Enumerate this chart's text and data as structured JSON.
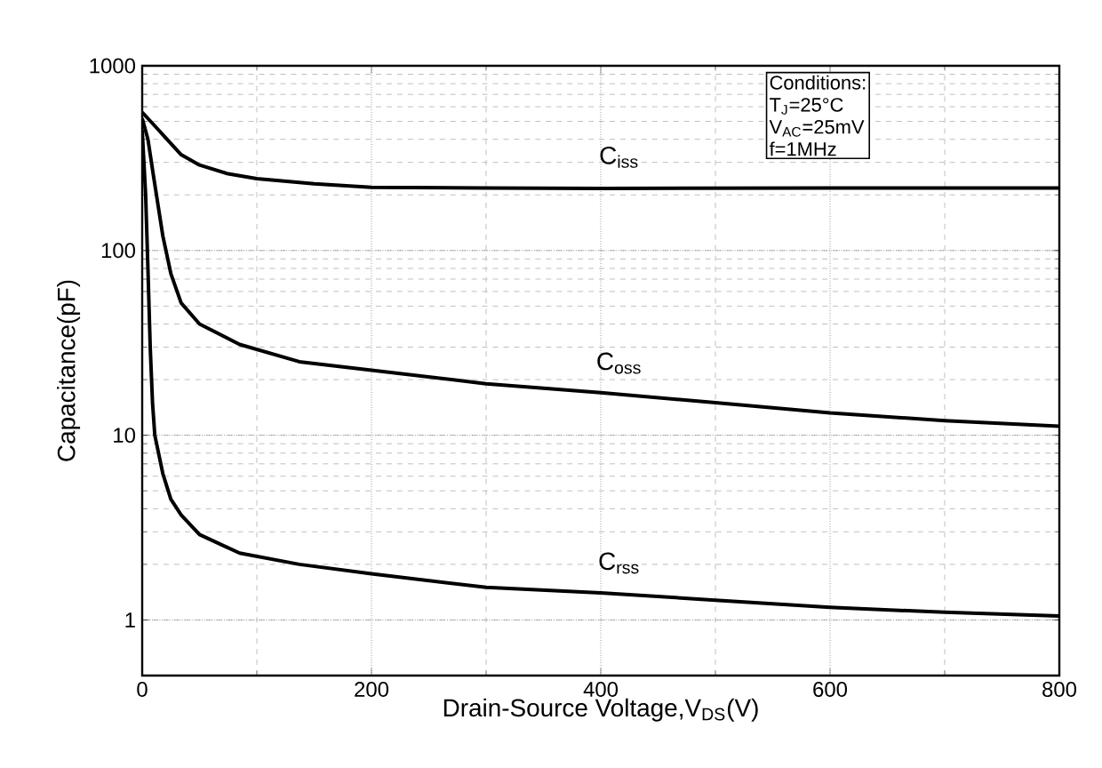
{
  "chart_data": {
    "type": "line",
    "xlabel": "Drain-Source Voltage,V$_{DS}$(V)",
    "ylabel": "Capacitance(pF)",
    "log": "y",
    "grid": true,
    "marker": "none",
    "line_style": "solid",
    "xlim": [
      0,
      800
    ],
    "xticks": [
      0,
      200,
      400,
      600,
      800
    ],
    "ylim": [
      0.5,
      1000
    ],
    "yticks": [
      1,
      10,
      100,
      1000
    ],
    "annotations": [
      "Conditions:",
      "T$_{J}$=25°C",
      "V$_{AC}$=25mV",
      "f=1MHz"
    ],
    "series": [
      {
        "name": "C$_{iss}$",
        "color": "#000000",
        "x": [
          0,
          10,
          20,
          34,
          50,
          75,
          100,
          150,
          200,
          300,
          400,
          600,
          800
        ],
        "values": [
          560,
          480,
          410,
          330,
          290,
          260,
          245,
          230,
          220,
          218,
          217,
          218,
          218
        ]
      },
      {
        "name": "C$_{oss}$",
        "color": "#000000",
        "x": [
          0,
          5,
          10,
          18,
          25,
          34,
          50,
          85,
          137,
          200,
          300,
          400,
          500,
          600,
          700,
          800
        ],
        "values": [
          520,
          400,
          250,
          120,
          75,
          52,
          40,
          31,
          25,
          22.5,
          19,
          17,
          15,
          13.2,
          12,
          11.2
        ]
      },
      {
        "name": "C$_{rss}$",
        "color": "#000000",
        "x": [
          0,
          3,
          5,
          7,
          9,
          11,
          18,
          25,
          34,
          50,
          85,
          137,
          200,
          300,
          400,
          500,
          600,
          700,
          800
        ],
        "values": [
          450,
          200,
          80,
          30,
          15,
          10,
          6.2,
          4.5,
          3.7,
          2.9,
          2.3,
          2.0,
          1.78,
          1.5,
          1.4,
          1.28,
          1.17,
          1.1,
          1.05
        ]
      }
    ]
  }
}
